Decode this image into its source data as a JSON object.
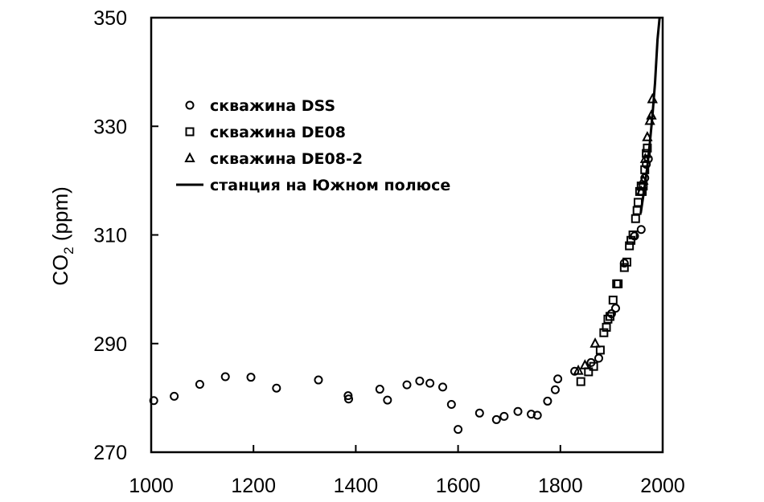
{
  "chart_data": {
    "type": "scatter",
    "title": "",
    "xlabel": "",
    "ylabel": {
      "main": "CO",
      "sub": "2",
      "rest": " (ppm)"
    },
    "xlim": [
      1000,
      2000
    ],
    "ylim": [
      270,
      350
    ],
    "xticks": [
      "1000",
      "1200",
      "1400",
      "1600",
      "1800",
      "2000"
    ],
    "yticks": [
      "270",
      "290",
      "310",
      "330",
      "350"
    ],
    "legend": {
      "position": "top-left",
      "entries": [
        {
          "marker": "circle",
          "label": "скважина DSS"
        },
        {
          "marker": "square",
          "label": "скважина DE08"
        },
        {
          "marker": "triangle",
          "label": "скважина DE08-2"
        },
        {
          "marker": "line",
          "label": "станция на Южном полюсе"
        }
      ]
    },
    "series": [
      {
        "name": "скважина DSS",
        "marker": "circle",
        "points": [
          [
            1005,
            279.5
          ],
          [
            1045,
            280.3
          ],
          [
            1095,
            282.5
          ],
          [
            1145,
            283.9
          ],
          [
            1195,
            283.8
          ],
          [
            1245,
            281.8
          ],
          [
            1327,
            283.3
          ],
          [
            1385,
            280.4
          ],
          [
            1386,
            279.8
          ],
          [
            1447,
            281.6
          ],
          [
            1462,
            279.6
          ],
          [
            1500,
            282.4
          ],
          [
            1525,
            283.1
          ],
          [
            1545,
            282.7
          ],
          [
            1570,
            282
          ],
          [
            1587,
            278.8
          ],
          [
            1600,
            274.2
          ],
          [
            1642,
            277.2
          ],
          [
            1675,
            276
          ],
          [
            1690,
            276.6
          ],
          [
            1717,
            277.5
          ],
          [
            1743,
            277
          ],
          [
            1755,
            276.8
          ],
          [
            1775,
            279.4
          ],
          [
            1790,
            281.5
          ],
          [
            1795,
            283.5
          ],
          [
            1828,
            284.9
          ],
          [
            1860,
            286.5
          ],
          [
            1875,
            287.3
          ],
          [
            1900,
            295.5
          ],
          [
            1908,
            296.5
          ],
          [
            1925,
            304.8
          ],
          [
            1945,
            309.8
          ],
          [
            1958,
            311
          ],
          [
            1965,
            320.5
          ],
          [
            1968,
            323
          ],
          [
            1972,
            324
          ]
        ]
      },
      {
        "name": "скважина DE08",
        "marker": "square",
        "points": [
          [
            1840,
            283
          ],
          [
            1855,
            284.8
          ],
          [
            1865,
            285.8
          ],
          [
            1878,
            288.8
          ],
          [
            1885,
            292
          ],
          [
            1890,
            293
          ],
          [
            1893,
            294.5
          ],
          [
            1897,
            295
          ],
          [
            1903,
            298
          ],
          [
            1910,
            301
          ],
          [
            1913,
            301
          ],
          [
            1925,
            304
          ],
          [
            1930,
            305
          ],
          [
            1935,
            308
          ],
          [
            1938,
            309
          ],
          [
            1942,
            310
          ],
          [
            1947,
            313
          ],
          [
            1950,
            314.5
          ],
          [
            1952,
            316
          ],
          [
            1955,
            318
          ],
          [
            1958,
            319
          ],
          [
            1960,
            318
          ],
          [
            1962,
            319
          ],
          [
            1965,
            322
          ],
          [
            1968,
            325
          ],
          [
            1970,
            326
          ]
        ]
      },
      {
        "name": "скважина DE08-2",
        "marker": "triangle",
        "points": [
          [
            1835,
            285
          ],
          [
            1848,
            286
          ],
          [
            1868,
            290
          ],
          [
            1958,
            318
          ],
          [
            1962,
            320
          ],
          [
            1966,
            324
          ],
          [
            1970,
            328
          ],
          [
            1975,
            331
          ],
          [
            1978,
            332
          ],
          [
            1980,
            335
          ]
        ]
      },
      {
        "name": "станция на Южном полюсе",
        "marker": "line",
        "points": [
          [
            1957,
            314
          ],
          [
            1965,
            319
          ],
          [
            1970,
            322.5
          ],
          [
            1975,
            327
          ],
          [
            1980,
            332
          ],
          [
            1985,
            338
          ],
          [
            1990,
            346
          ],
          [
            1994,
            350
          ]
        ]
      }
    ]
  }
}
